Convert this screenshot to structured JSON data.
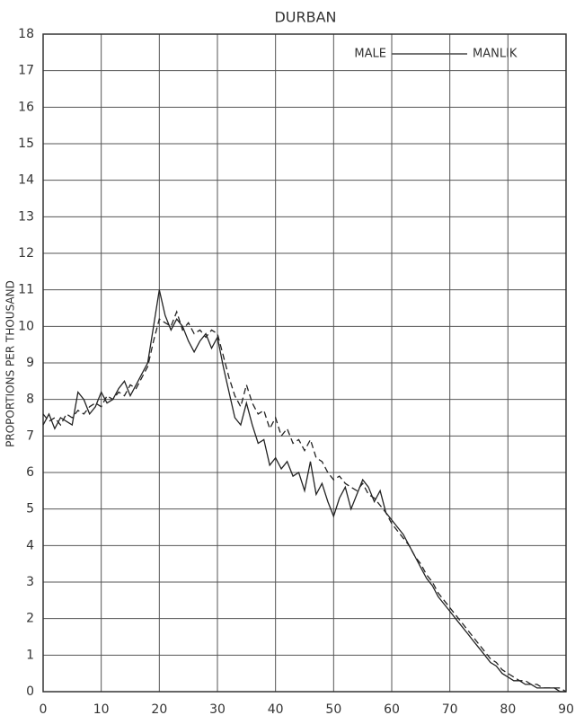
{
  "chart_data": {
    "type": "line",
    "title": "DURBAN",
    "y_label": "PROPORTIONS PER THOUSAND",
    "legend_left": "MALE",
    "legend_right": "MANLIK",
    "x": [
      0,
      1,
      2,
      3,
      4,
      5,
      6,
      7,
      8,
      9,
      10,
      11,
      12,
      13,
      14,
      15,
      16,
      17,
      18,
      19,
      20,
      21,
      22,
      23,
      24,
      25,
      26,
      27,
      28,
      29,
      30,
      31,
      32,
      33,
      34,
      35,
      36,
      37,
      38,
      39,
      40,
      41,
      42,
      43,
      44,
      45,
      46,
      47,
      48,
      49,
      50,
      51,
      52,
      53,
      54,
      55,
      56,
      57,
      58,
      59,
      60,
      61,
      62,
      63,
      64,
      65,
      66,
      67,
      68,
      69,
      70,
      71,
      72,
      73,
      74,
      75,
      76,
      77,
      78,
      79,
      80,
      81,
      82,
      83,
      84,
      85,
      86,
      87,
      88,
      89,
      90
    ],
    "series": [
      {
        "color": "#222",
        "dash": false,
        "values": [
          7.3,
          7.6,
          7.2,
          7.5,
          7.4,
          7.3,
          8.2,
          8.0,
          7.6,
          7.8,
          8.2,
          7.9,
          8.0,
          8.3,
          8.5,
          8.1,
          8.4,
          8.7,
          9.0,
          10.0,
          11.0,
          10.3,
          9.9,
          10.2,
          10.0,
          9.6,
          9.3,
          9.6,
          9.8,
          9.4,
          9.7,
          8.9,
          8.2,
          7.5,
          7.3,
          7.9,
          7.3,
          6.8,
          6.9,
          6.2,
          6.4,
          6.1,
          6.3,
          5.9,
          6.0,
          5.5,
          6.3,
          5.4,
          5.7,
          5.2,
          4.8,
          5.3,
          5.6,
          5.0,
          5.4,
          5.8,
          5.6,
          5.2,
          5.5,
          4.9,
          4.7,
          4.5,
          4.3,
          4.0,
          3.7,
          3.4,
          3.1,
          2.9,
          2.6,
          2.4,
          2.2,
          2.0,
          1.8,
          1.6,
          1.4,
          1.2,
          1.0,
          0.8,
          0.7,
          0.5,
          0.4,
          0.3,
          0.3,
          0.2,
          0.2,
          0.1,
          0.1,
          0.1,
          0.1,
          0.0,
          0.0
        ]
      },
      {
        "color": "#222",
        "dash": true,
        "values": [
          7.6,
          7.4,
          7.5,
          7.3,
          7.6,
          7.5,
          7.7,
          7.6,
          7.8,
          7.9,
          7.8,
          8.1,
          8.0,
          8.2,
          8.1,
          8.4,
          8.3,
          8.6,
          8.9,
          9.6,
          10.2,
          10.1,
          10.0,
          10.4,
          9.9,
          10.1,
          9.8,
          9.9,
          9.7,
          9.9,
          9.8,
          9.2,
          8.6,
          8.1,
          7.8,
          8.4,
          7.9,
          7.6,
          7.7,
          7.2,
          7.5,
          7.0,
          7.2,
          6.8,
          6.9,
          6.6,
          6.9,
          6.4,
          6.3,
          6.0,
          5.8,
          5.9,
          5.7,
          5.6,
          5.5,
          5.7,
          5.4,
          5.3,
          5.1,
          4.9,
          4.6,
          4.4,
          4.2,
          4.0,
          3.7,
          3.5,
          3.2,
          3.0,
          2.7,
          2.5,
          2.3,
          2.1,
          1.9,
          1.7,
          1.5,
          1.3,
          1.1,
          0.9,
          0.8,
          0.6,
          0.5,
          0.4,
          0.3,
          0.3,
          0.2,
          0.2,
          0.1,
          0.1,
          0.1,
          0.1,
          0.0
        ]
      }
    ],
    "xlim": [
      0,
      90
    ],
    "xticks": [
      0,
      10,
      20,
      30,
      40,
      50,
      60,
      70,
      80,
      90
    ],
    "ylim": [
      0,
      18
    ],
    "yticks": [
      0,
      1,
      2,
      3,
      4,
      5,
      6,
      7,
      8,
      9,
      10,
      11,
      12,
      13,
      14,
      15,
      16,
      17,
      18
    ],
    "grid": true
  }
}
